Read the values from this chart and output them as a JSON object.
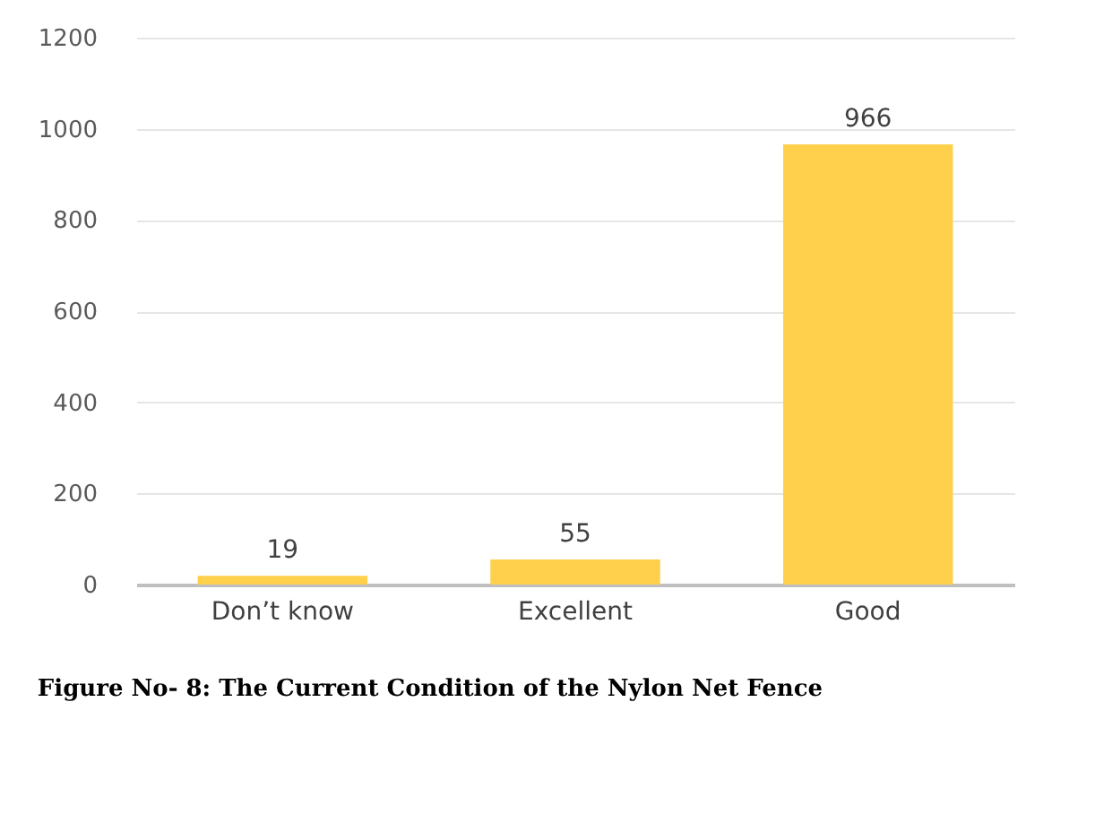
{
  "chart_data": {
    "type": "bar",
    "categories": [
      "Don’t know",
      "Excellent",
      "Good"
    ],
    "values": [
      19,
      55,
      966
    ],
    "color": "#ffd04c",
    "ylim": [
      0,
      1200
    ],
    "yticks": [
      0,
      200,
      400,
      600,
      800,
      1000,
      1200
    ],
    "grid": "y",
    "data_labels": true,
    "annotations": [
      "Figure No- 8: The Current Condition of the Nylon Net Fence"
    ]
  }
}
